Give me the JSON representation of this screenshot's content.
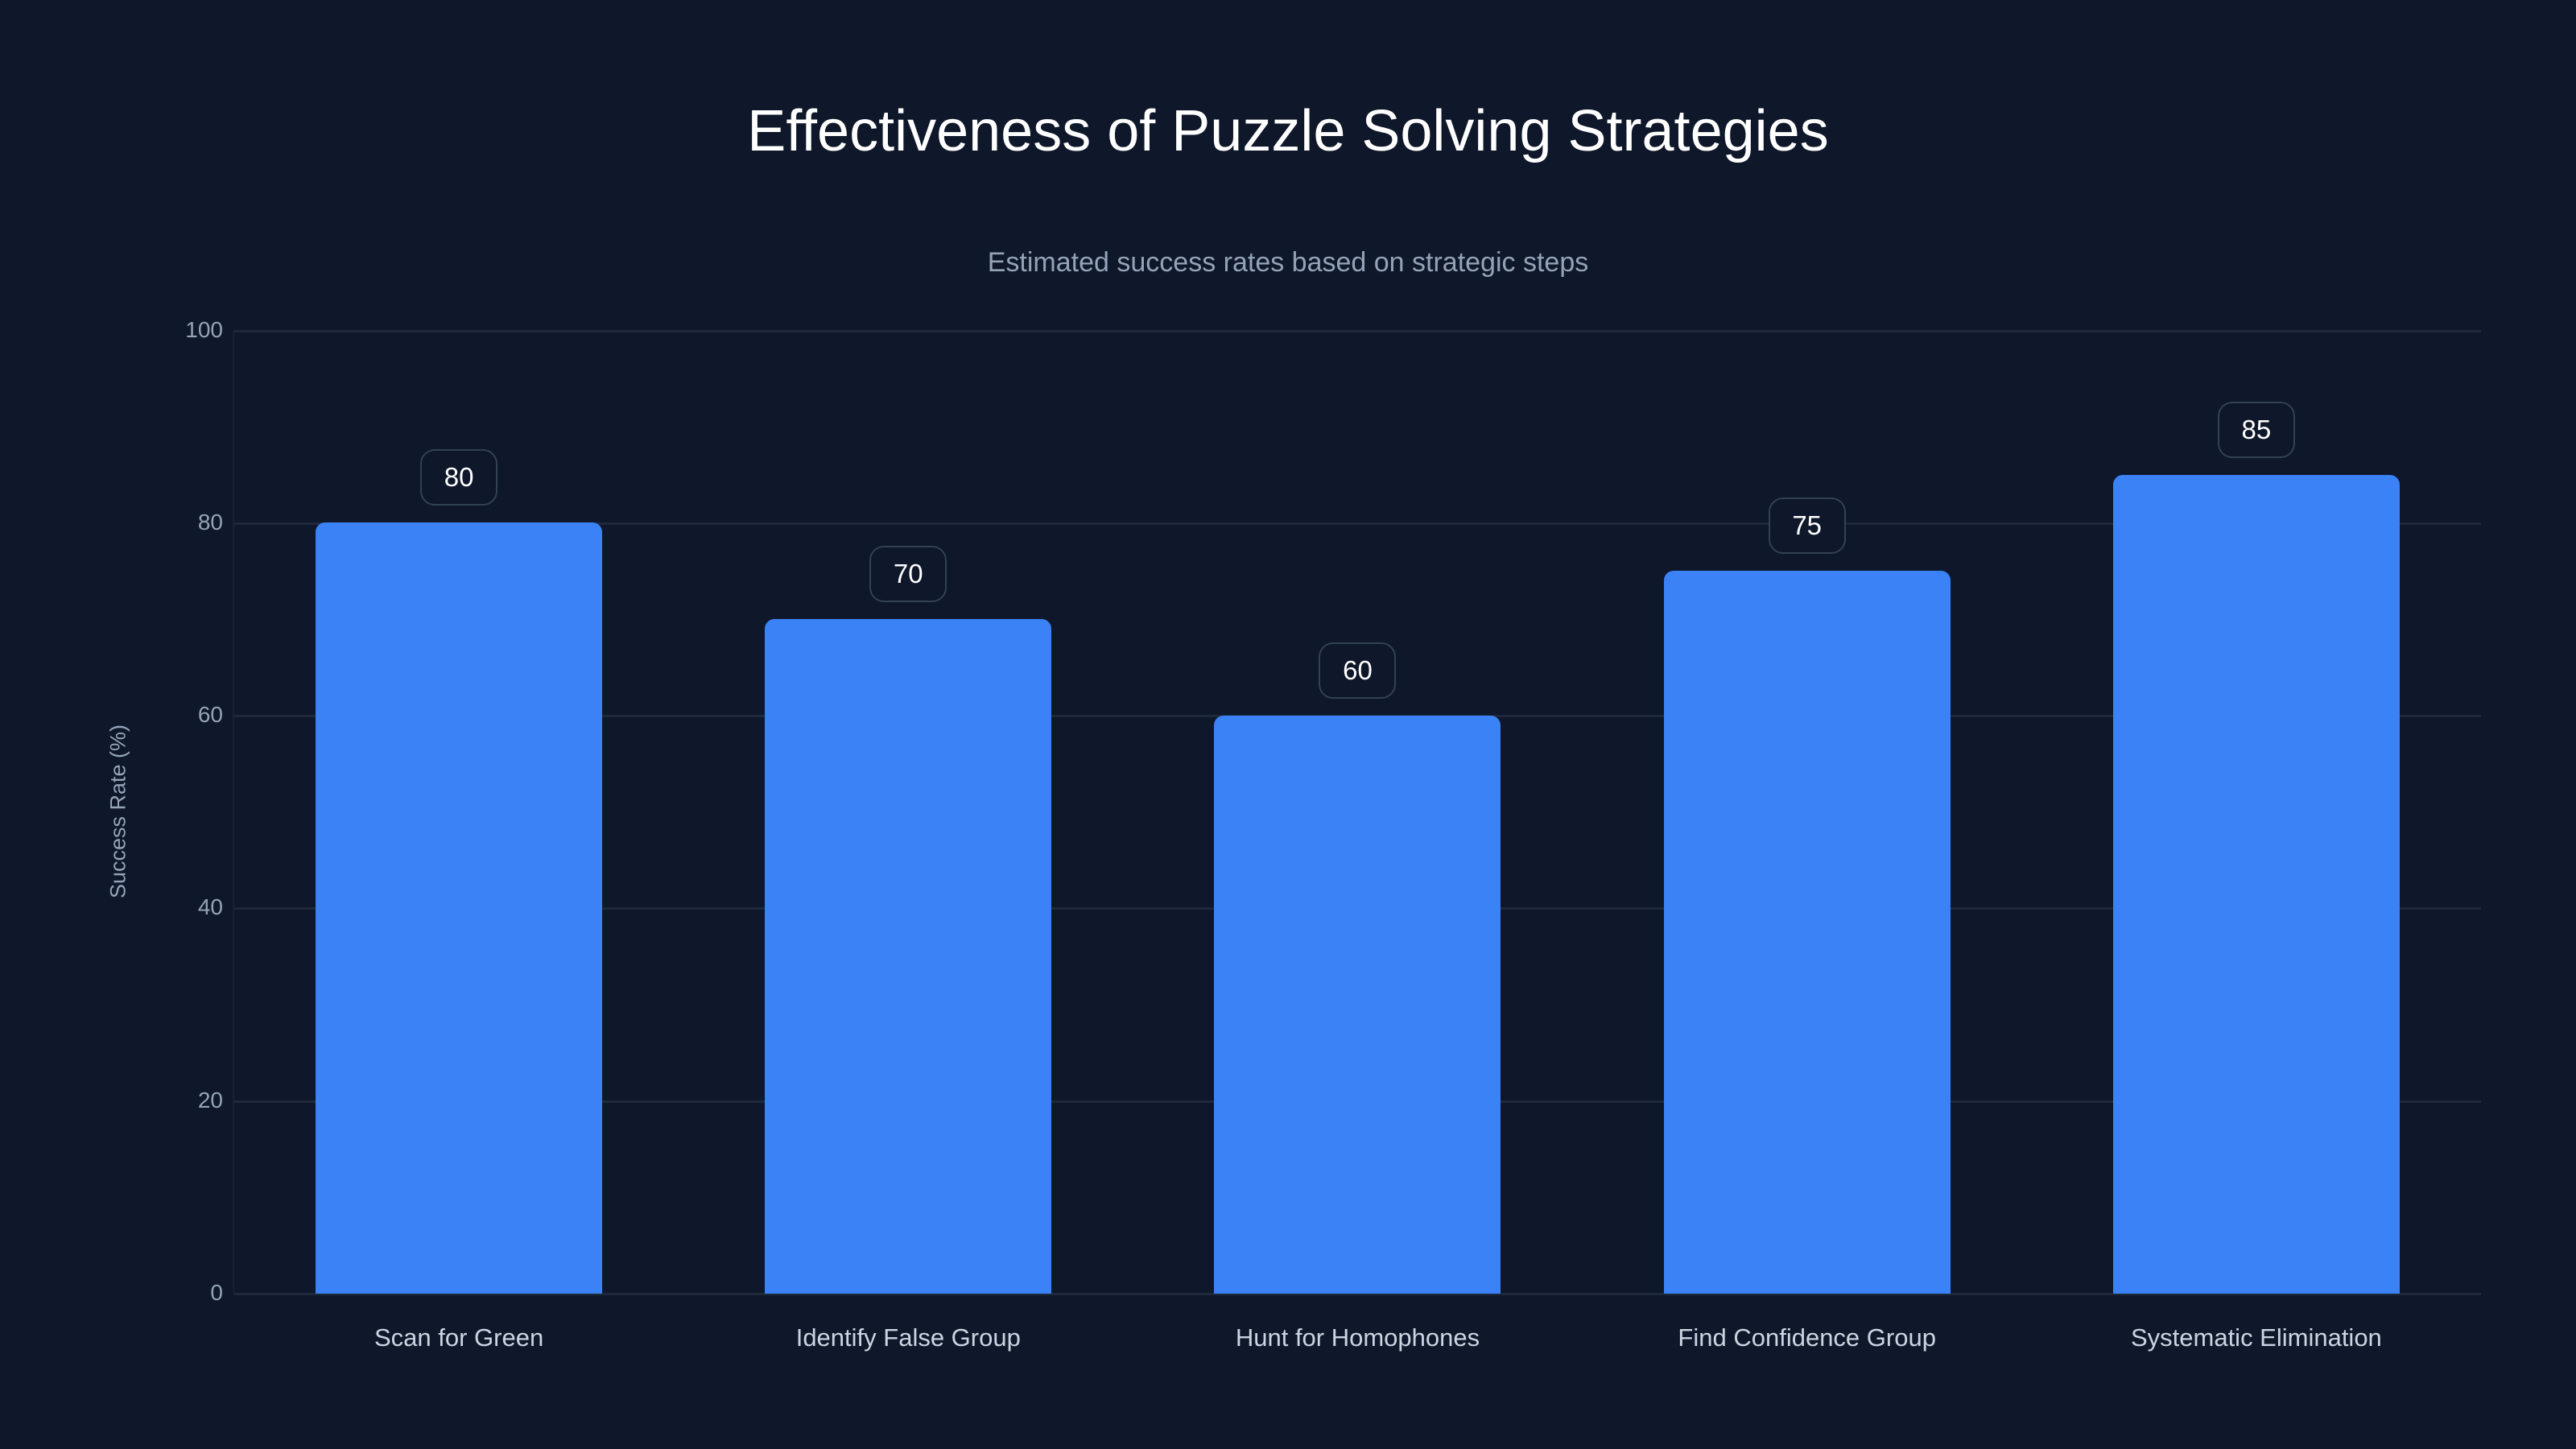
{
  "header": {
    "title": "Effectiveness of Puzzle Solving Strategies",
    "subtitle": "Estimated success rates based on strategic steps"
  },
  "axes": {
    "y_title": "Success Rate (%)",
    "y_ticks": [
      "0",
      "20",
      "40",
      "60",
      "80",
      "100"
    ]
  },
  "colors": {
    "background": "#0f172a",
    "bar": "#3b82f6",
    "grid": "#1e293b",
    "label_border": "#334155",
    "tick_text": "#94a3b8",
    "category_text": "#cbd5e1"
  },
  "bars": [
    {
      "label": "Scan for Green",
      "value": 80,
      "value_label": "80"
    },
    {
      "label": "Identify False Group",
      "value": 70,
      "value_label": "70"
    },
    {
      "label": "Hunt for Homophones",
      "value": 60,
      "value_label": "60"
    },
    {
      "label": "Find Confidence Group",
      "value": 75,
      "value_label": "75"
    },
    {
      "label": "Systematic Elimination",
      "value": 85,
      "value_label": "85"
    }
  ],
  "chart_data": {
    "type": "bar",
    "title": "Effectiveness of Puzzle Solving Strategies",
    "subtitle": "Estimated success rates based on strategic steps",
    "categories": [
      "Scan for Green",
      "Identify False Group",
      "Hunt for Homophones",
      "Find Confidence Group",
      "Systematic Elimination"
    ],
    "values": [
      80,
      70,
      60,
      75,
      85
    ],
    "xlabel": "",
    "ylabel": "Success Rate (%)",
    "ylim": [
      0,
      100
    ],
    "yticks": [
      0,
      20,
      40,
      60,
      80,
      100
    ],
    "grid": true,
    "legend": null,
    "data_labels": true
  }
}
